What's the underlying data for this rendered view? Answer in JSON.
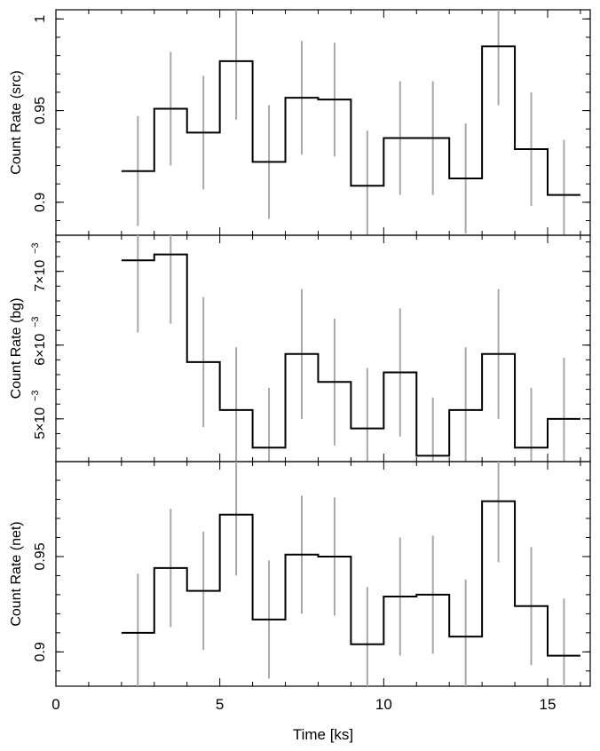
{
  "chart_data": [
    {
      "type": "line",
      "panel": "src",
      "ylabel": "Count Rate (src)",
      "ylim": [
        0.882,
        1.005
      ],
      "yticks": [
        0.9,
        0.95,
        1.0
      ],
      "ytick_labels": [
        "0.9",
        "0.95",
        "1"
      ],
      "step": "histogram",
      "bin_width_ks": 1,
      "x": [
        2.5,
        3.5,
        4.5,
        5.5,
        6.5,
        7.5,
        8.5,
        9.5,
        10.5,
        11.5,
        12.5,
        13.5,
        14.5,
        15.5
      ],
      "values": [
        0.917,
        0.951,
        0.938,
        0.977,
        0.922,
        0.957,
        0.956,
        0.909,
        0.935,
        0.935,
        0.913,
        0.985,
        0.929,
        0.904
      ],
      "errors": [
        0.03,
        0.031,
        0.031,
        0.032,
        0.031,
        0.031,
        0.031,
        0.03,
        0.031,
        0.031,
        0.03,
        0.032,
        0.031,
        0.03
      ]
    },
    {
      "type": "line",
      "panel": "bg",
      "ylabel": "Count Rate (bg)",
      "ylim": [
        4.42,
        7.49
      ],
      "yticks": [
        5,
        6,
        7
      ],
      "ytick_labels": [
        "5×10",
        "6×10",
        "7×10"
      ],
      "ytick_exponent": "−3",
      "step": "histogram",
      "bin_width_ks": 1,
      "x": [
        2.5,
        3.5,
        4.5,
        5.5,
        6.5,
        7.5,
        8.5,
        9.5,
        10.5,
        11.5,
        12.5,
        13.5,
        14.5,
        15.5
      ],
      "values": [
        7.15,
        7.23,
        5.77,
        5.12,
        4.61,
        5.88,
        5.5,
        4.87,
        5.63,
        4.5,
        5.12,
        5.88,
        4.61,
        5.0
      ],
      "errors": [
        0.98,
        0.94,
        0.88,
        0.85,
        0.81,
        0.88,
        0.86,
        0.82,
        0.87,
        0.79,
        0.85,
        0.88,
        0.81,
        0.83
      ]
    },
    {
      "type": "line",
      "panel": "net",
      "ylabel": "Count Rate (net)",
      "ylim": [
        0.882,
        0.9998
      ],
      "yticks": [
        0.9,
        0.95
      ],
      "ytick_labels": [
        "0.9",
        "0.95"
      ],
      "step": "histogram",
      "bin_width_ks": 1,
      "x": [
        2.5,
        3.5,
        4.5,
        5.5,
        6.5,
        7.5,
        8.5,
        9.5,
        10.5,
        11.5,
        12.5,
        13.5,
        14.5,
        15.5
      ],
      "values": [
        0.91,
        0.944,
        0.932,
        0.972,
        0.917,
        0.951,
        0.95,
        0.904,
        0.929,
        0.93,
        0.908,
        0.979,
        0.924,
        0.898
      ],
      "errors": [
        0.031,
        0.031,
        0.031,
        0.032,
        0.031,
        0.031,
        0.031,
        0.03,
        0.031,
        0.031,
        0.03,
        0.032,
        0.031,
        0.03
      ]
    }
  ],
  "xaxis": {
    "label": "Time [ks]",
    "xlim": [
      0,
      16.3
    ],
    "ticks": [
      0,
      5,
      10,
      15
    ],
    "tick_labels": [
      "0",
      "5",
      "10",
      "15"
    ]
  },
  "colors": {
    "histogram": "#000000",
    "errorbar": "#a8a8a8",
    "frame": "#000000"
  }
}
